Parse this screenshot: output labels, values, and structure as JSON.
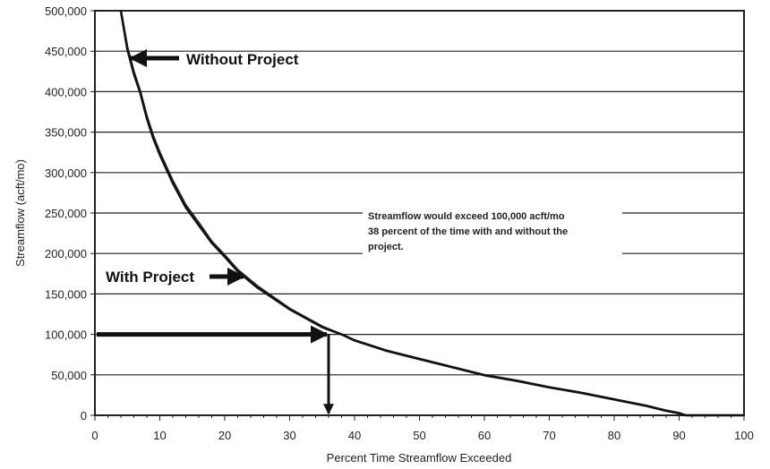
{
  "chart_data": {
    "type": "line",
    "title": "",
    "xlabel": "Percent Time Streamflow Exceeded",
    "ylabel": "Streamflow (acft/mo)",
    "xlim": [
      0,
      100
    ],
    "ylim": [
      0,
      500000
    ],
    "x_ticks": [
      "0",
      "10",
      "20",
      "30",
      "40",
      "50",
      "60",
      "70",
      "80",
      "90",
      "100"
    ],
    "y_ticks": [
      "0",
      "50,000",
      "100,000",
      "150,000",
      "200,000",
      "250,000",
      "300,000",
      "350,000",
      "400,000",
      "450,000",
      "500,000"
    ],
    "grid": "horizontal",
    "series": [
      {
        "name": "Without Project",
        "x": [
          4,
          5,
          6,
          7,
          8,
          9,
          10,
          12,
          14,
          16,
          18,
          20,
          22,
          25,
          30,
          35,
          38,
          40,
          45,
          50,
          55,
          60,
          65,
          70,
          75,
          80,
          85,
          88,
          90,
          91,
          92,
          95,
          100
        ],
        "y": [
          500000,
          455000,
          425000,
          400000,
          370000,
          345000,
          325000,
          290000,
          260000,
          238000,
          215000,
          198000,
          180000,
          160000,
          132000,
          110000,
          100000,
          93000,
          80000,
          70000,
          60000,
          50000,
          43000,
          35000,
          28000,
          20000,
          12000,
          6000,
          3000,
          0,
          0,
          0,
          0
        ]
      },
      {
        "name": "With Project",
        "x": [
          4,
          5,
          6,
          7,
          8,
          9,
          10,
          12,
          14,
          16,
          18,
          20,
          22,
          25,
          30,
          35,
          38,
          40,
          45,
          50,
          55,
          60,
          65,
          70,
          75,
          80,
          85,
          88,
          90,
          91,
          92,
          95,
          100
        ],
        "y": [
          500000,
          452000,
          422000,
          398000,
          367000,
          342000,
          322000,
          287000,
          257000,
          235000,
          213000,
          196000,
          178000,
          158000,
          131000,
          109000,
          100000,
          92500,
          79500,
          69500,
          59500,
          49500,
          42500,
          34500,
          27500,
          19500,
          11500,
          5500,
          2500,
          0,
          0,
          0,
          0
        ]
      }
    ],
    "annotations": [
      {
        "text": "Without Project"
      },
      {
        "text": "With Project"
      },
      {
        "lines": [
          "Streamflow would exceed 100,000 acft/mo",
          "38 percent of the time with and without the",
          "project."
        ]
      }
    ],
    "reference": {
      "x": 36,
      "y": 100000
    }
  }
}
